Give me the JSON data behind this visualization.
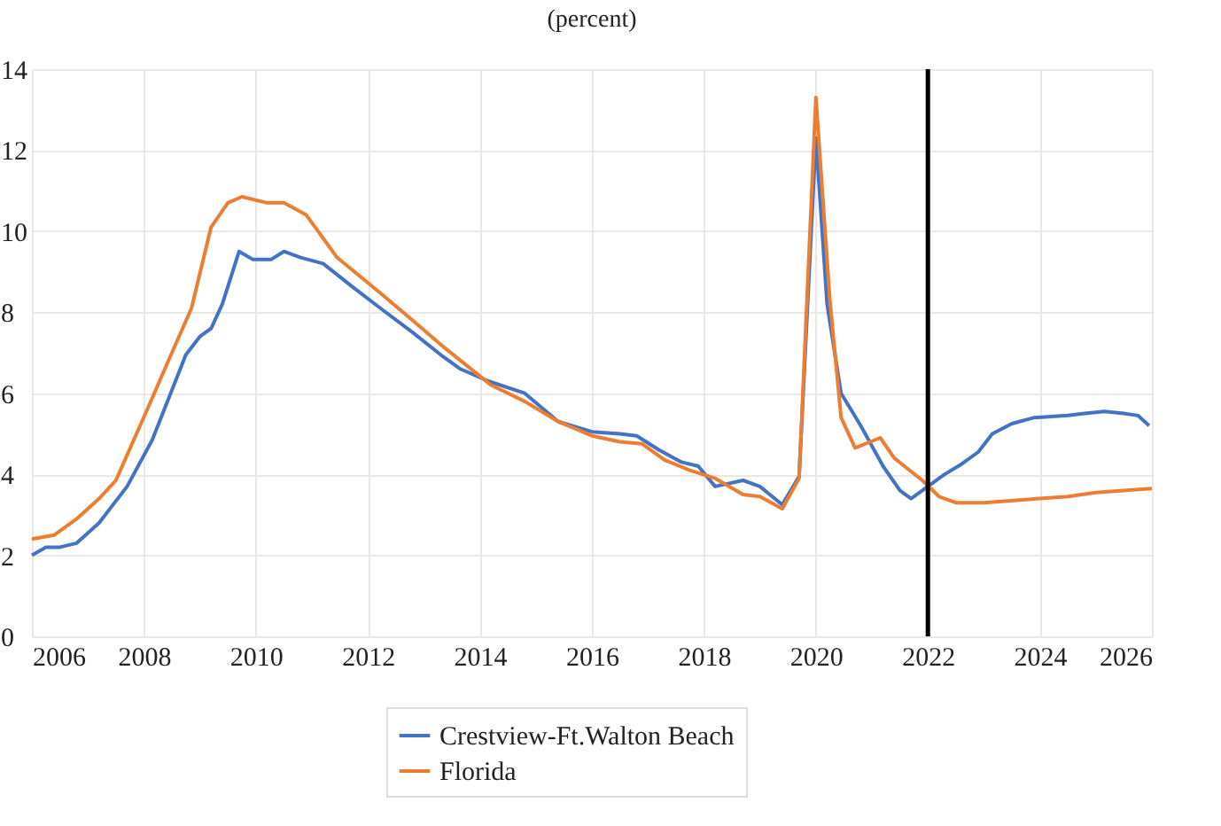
{
  "chart_data": {
    "type": "line",
    "title": "(percent)",
    "series": [
      {
        "name": "Crestview-Ft.Walton Beach",
        "color": "#4472c4",
        "x": [
          2006,
          2006.25,
          2006.5,
          2006.8,
          2007.2,
          2007.7,
          2008.15,
          2008.45,
          2008.75,
          2009.0,
          2009.2,
          2009.4,
          2009.7,
          2009.95,
          2010.27,
          2010.5,
          2010.8,
          2011.2,
          2011.75,
          2012.27,
          2012.8,
          2013.3,
          2013.65,
          2014.15,
          2014.8,
          2015.4,
          2016.0,
          2016.5,
          2016.8,
          2017.2,
          2017.6,
          2017.9,
          2018.2,
          2018.7,
          2019.0,
          2019.4,
          2019.7,
          2020.0,
          2020.2,
          2020.45,
          2020.8,
          2021.2,
          2021.5,
          2021.7,
          2022.0,
          2022.3,
          2022.6,
          2022.9,
          2023.15,
          2023.5,
          2023.9,
          2024.5,
          2024.8,
          2025.15,
          2025.5,
          2025.75,
          2025.95
        ],
        "values": [
          2.0,
          2.2,
          2.2,
          2.3,
          2.8,
          3.7,
          4.85,
          5.9,
          6.95,
          7.4,
          7.6,
          8.2,
          9.5,
          9.3,
          9.3,
          9.5,
          9.35,
          9.2,
          8.6,
          8.05,
          7.5,
          6.95,
          6.6,
          6.3,
          6.0,
          5.3,
          5.05,
          5.0,
          4.95,
          4.6,
          4.3,
          4.2,
          3.7,
          3.85,
          3.7,
          3.25,
          3.95,
          12.3,
          8.2,
          6.0,
          5.2,
          4.2,
          3.6,
          3.4,
          3.7,
          4.0,
          4.25,
          4.55,
          5.0,
          5.25,
          5.4,
          5.45,
          5.5,
          5.55,
          5.5,
          5.45,
          5.2
        ]
      },
      {
        "name": "Florida",
        "color": "#ed7d31",
        "x": [
          2006,
          2006.4,
          2006.8,
          2007.2,
          2007.5,
          2008.06,
          2008.5,
          2008.85,
          2009.2,
          2009.5,
          2009.75,
          2010.2,
          2010.5,
          2010.9,
          2011.45,
          2012.2,
          2012.8,
          2013.3,
          2014.2,
          2014.8,
          2015.4,
          2016.0,
          2016.5,
          2016.9,
          2017.3,
          2017.75,
          2018.2,
          2018.7,
          2019.0,
          2019.4,
          2019.7,
          2020.0,
          2020.25,
          2020.45,
          2020.7,
          2021.15,
          2021.4,
          2021.9,
          2022.2,
          2022.5,
          2023.0,
          2024.0,
          2024.5,
          2025.0,
          2025.5,
          2026.0
        ],
        "values": [
          2.4,
          2.5,
          2.9,
          3.4,
          3.85,
          5.6,
          7.0,
          8.1,
          10.1,
          10.7,
          10.85,
          10.7,
          10.7,
          10.4,
          9.35,
          8.5,
          7.8,
          7.2,
          6.2,
          5.8,
          5.3,
          4.95,
          4.8,
          4.75,
          4.35,
          4.1,
          3.9,
          3.5,
          3.45,
          3.15,
          3.9,
          13.3,
          8.3,
          5.4,
          4.65,
          4.9,
          4.4,
          3.85,
          3.45,
          3.3,
          3.3,
          3.4,
          3.45,
          3.55,
          3.6,
          3.65
        ]
      }
    ],
    "xlim": [
      2006,
      2026
    ],
    "xticks": [
      2006,
      2008,
      2010,
      2012,
      2014,
      2016,
      2018,
      2020,
      2022,
      2024,
      2026
    ],
    "ylim": [
      0,
      14
    ],
    "yticks": [
      0,
      2,
      4,
      6,
      8,
      10,
      12,
      14
    ],
    "ref_lines": [
      {
        "axis": "x",
        "value": 2022,
        "color": "#000000"
      }
    ],
    "grid": true,
    "legend": "bottom",
    "line_style": "solid",
    "marker": "none"
  }
}
